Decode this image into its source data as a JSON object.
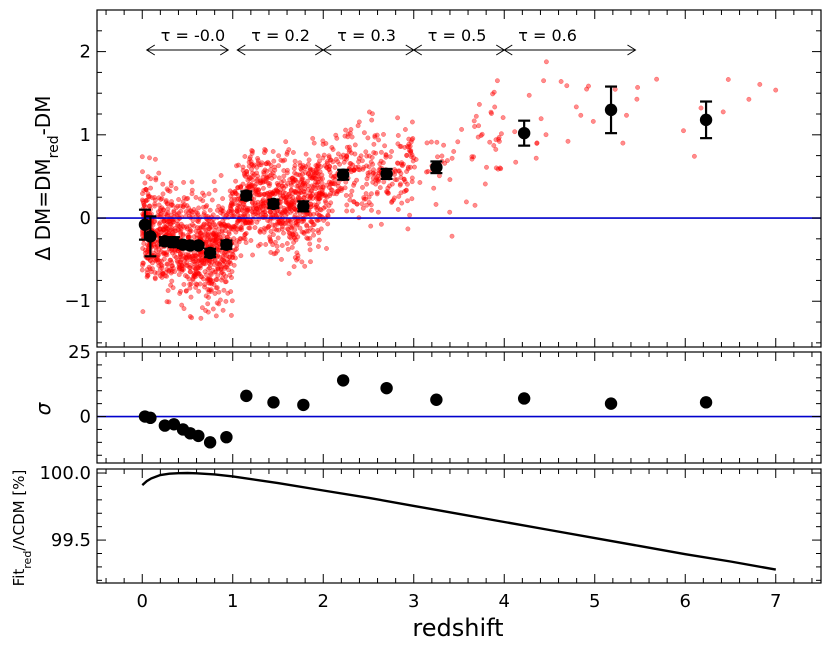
{
  "chart_data": [
    {
      "type": "scatter",
      "panel": "top",
      "ylabel": "Δ DM=DM",
      "ylabel_parts": [
        "Δ DM=DM",
        "red",
        "-DM"
      ],
      "xlim": [
        -0.5,
        7.5
      ],
      "ylim": [
        -1.55,
        2.5
      ],
      "yticks": [
        -1,
        0,
        1,
        2
      ],
      "ytick_labels": [
        "−1",
        "0",
        "1",
        "2"
      ],
      "reference_line": {
        "y": 0,
        "color": "#0000cc"
      },
      "tau_annotations": [
        {
          "label": "τ = -0.0",
          "x_start": 0.05,
          "x_end": 0.95
        },
        {
          "label": "τ = 0.2",
          "x_start": 1.05,
          "x_end": 2.0
        },
        {
          "label": "τ = 0.3",
          "x_start": 2.0,
          "x_end": 3.0
        },
        {
          "label": "τ = 0.5",
          "x_start": 3.0,
          "x_end": 4.0
        },
        {
          "label": "τ = 0.6",
          "x_start": 4.0,
          "x_end": 5.45
        }
      ],
      "scatter_color": "#ff0000",
      "series": [
        {
          "color": "#000000",
          "x": [
            0.03,
            0.09,
            0.25,
            0.35,
            0.45,
            0.53,
            0.62,
            0.75,
            0.93,
            1.15,
            1.45,
            1.78,
            2.22,
            2.7,
            3.25,
            4.22,
            5.18,
            6.23
          ],
          "y": [
            -0.08,
            -0.22,
            -0.28,
            -0.29,
            -0.32,
            -0.33,
            -0.33,
            -0.42,
            -0.32,
            0.27,
            0.17,
            0.14,
            0.52,
            0.53,
            0.61,
            1.02,
            1.3,
            1.18
          ],
          "yerr": [
            0.18,
            0.24,
            0.05,
            0.06,
            0.04,
            0.04,
            0.03,
            0.05,
            0.05,
            0.05,
            0.05,
            0.06,
            0.06,
            0.06,
            0.07,
            0.15,
            0.28,
            0.22
          ]
        }
      ]
    },
    {
      "type": "scatter",
      "panel": "middle",
      "ylabel": "σ",
      "xlim": [
        -0.5,
        7.5
      ],
      "ylim": [
        -18,
        25
      ],
      "yticks": [
        0,
        25
      ],
      "ytick_labels": [
        "0",
        "25"
      ],
      "reference_line": {
        "y": 0,
        "color": "#0000cc"
      },
      "series": [
        {
          "color": "#000000",
          "x": [
            0.03,
            0.09,
            0.25,
            0.35,
            0.45,
            0.53,
            0.62,
            0.75,
            0.93,
            1.15,
            1.45,
            1.78,
            2.22,
            2.7,
            3.25,
            4.22,
            5.18,
            6.23
          ],
          "y": [
            0,
            -0.5,
            -3.5,
            -3.0,
            -5.0,
            -6.5,
            -7.5,
            -10.0,
            -8.0,
            8.0,
            5.5,
            4.5,
            14.0,
            11.0,
            6.5,
            7.0,
            5.0,
            5.5
          ]
        }
      ]
    },
    {
      "type": "line",
      "panel": "bottom",
      "ylabel": "Fit",
      "ylabel_parts": [
        "Fit",
        "red",
        "/ΛCDM [%]"
      ],
      "xlabel": "redshift",
      "xlim": [
        -0.5,
        7.5
      ],
      "ylim": [
        99.18,
        100.03
      ],
      "yticks": [
        99.5,
        100.0
      ],
      "ytick_labels": [
        "99.5",
        "100.0"
      ],
      "xticks": [
        0,
        1,
        2,
        3,
        4,
        5,
        6,
        7
      ],
      "xtick_labels": [
        "0",
        "1",
        "2",
        "3",
        "4",
        "5",
        "6",
        "7"
      ],
      "series": [
        {
          "color": "#000000",
          "x": [
            0.0,
            0.05,
            0.1,
            0.2,
            0.3,
            0.4,
            0.5,
            0.6,
            0.8,
            1.0,
            1.5,
            2.0,
            2.5,
            3.0,
            3.5,
            4.0,
            4.5,
            5.0,
            5.5,
            6.0,
            6.5,
            7.0
          ],
          "y": [
            99.91,
            99.94,
            99.96,
            99.985,
            99.995,
            99.999,
            100.0,
            99.998,
            99.99,
            99.975,
            99.925,
            99.87,
            99.815,
            99.755,
            99.695,
            99.635,
            99.575,
            99.515,
            99.455,
            99.395,
            99.34,
            99.28
          ]
        }
      ]
    }
  ]
}
